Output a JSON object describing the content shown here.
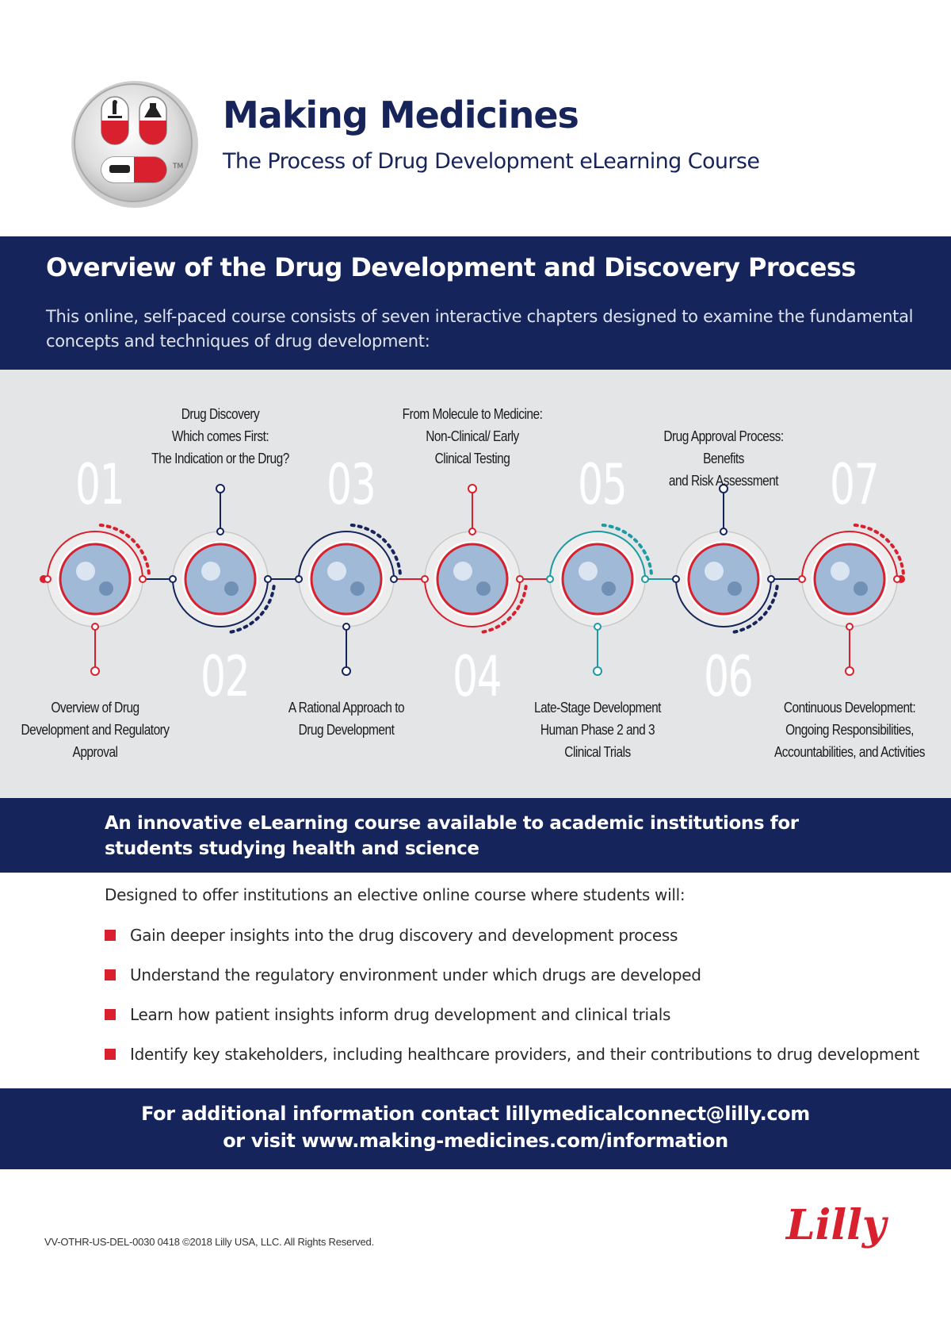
{
  "header": {
    "title": "Making Medicines",
    "subtitle": "The Process of Drug Development eLearning Course",
    "logo_mark": "TM"
  },
  "overview": {
    "heading": "Overview of the Drug Development and Discovery Process",
    "intro": "This online, self-paced course consists of seven interactive chapters designed to examine the fundamental concepts and techniques of drug development:"
  },
  "chapters": [
    {
      "number": "01",
      "lines": [
        "Overview of Drug",
        "Development and Regulatory",
        "Approval"
      ],
      "image": "microplate-image"
    },
    {
      "number": "02",
      "lines": [
        "Drug Discovery",
        "Which comes First:",
        "The Indication or the Drug?"
      ],
      "image": "lab-scientist-image"
    },
    {
      "number": "03",
      "lines": [
        "A Rational Approach to",
        "Drug Development"
      ],
      "image": "vials-grid-image"
    },
    {
      "number": "04",
      "lines": [
        "From Molecule to Medicine:",
        "Non-Clinical/ Early",
        "Clinical Testing"
      ],
      "image": "molecule-model-image"
    },
    {
      "number": "05",
      "lines": [
        "Late-Stage Development",
        "Human Phase 2 and 3",
        "Clinical Trials"
      ],
      "image": "test-tubes-image"
    },
    {
      "number": "06",
      "lines": [
        "Drug Approval Process: Benefits",
        "and Risk Assessment"
      ],
      "image": "injection-image"
    },
    {
      "number": "07",
      "lines": [
        "Continuous  Development:",
        "Ongoing Responsibilities,",
        "Accountabilities, and Activities"
      ],
      "image": "doctor-patient-image"
    }
  ],
  "innovative": {
    "line1": "An innovative eLearning course available to academic institutions for",
    "line2": "students studying health and science"
  },
  "benefits": {
    "intro": "Designed to offer institutions an elective online course where students will:",
    "items": [
      "Gain deeper insights into the drug discovery and development process",
      "Understand the regulatory environment under which drugs are developed",
      "Learn how patient insights inform drug development and clinical trials",
      "Identify key stakeholders, including healthcare providers, and their contributions to drug development"
    ]
  },
  "contact": {
    "line1": "For additional information contact lillymedicalconnect@lilly.com",
    "line2": "or visit www.making-medicines.com/information"
  },
  "footer": {
    "legal": "VV-OTHR-US-DEL-0030 0418 ©2018 Lilly USA, LLC. All Rights Reserved.",
    "brand": "Lilly"
  },
  "colors": {
    "navy": "#15245a",
    "red": "#d8202e",
    "teal": "#1d9aa3",
    "gray_band": "#e4e5e7"
  }
}
